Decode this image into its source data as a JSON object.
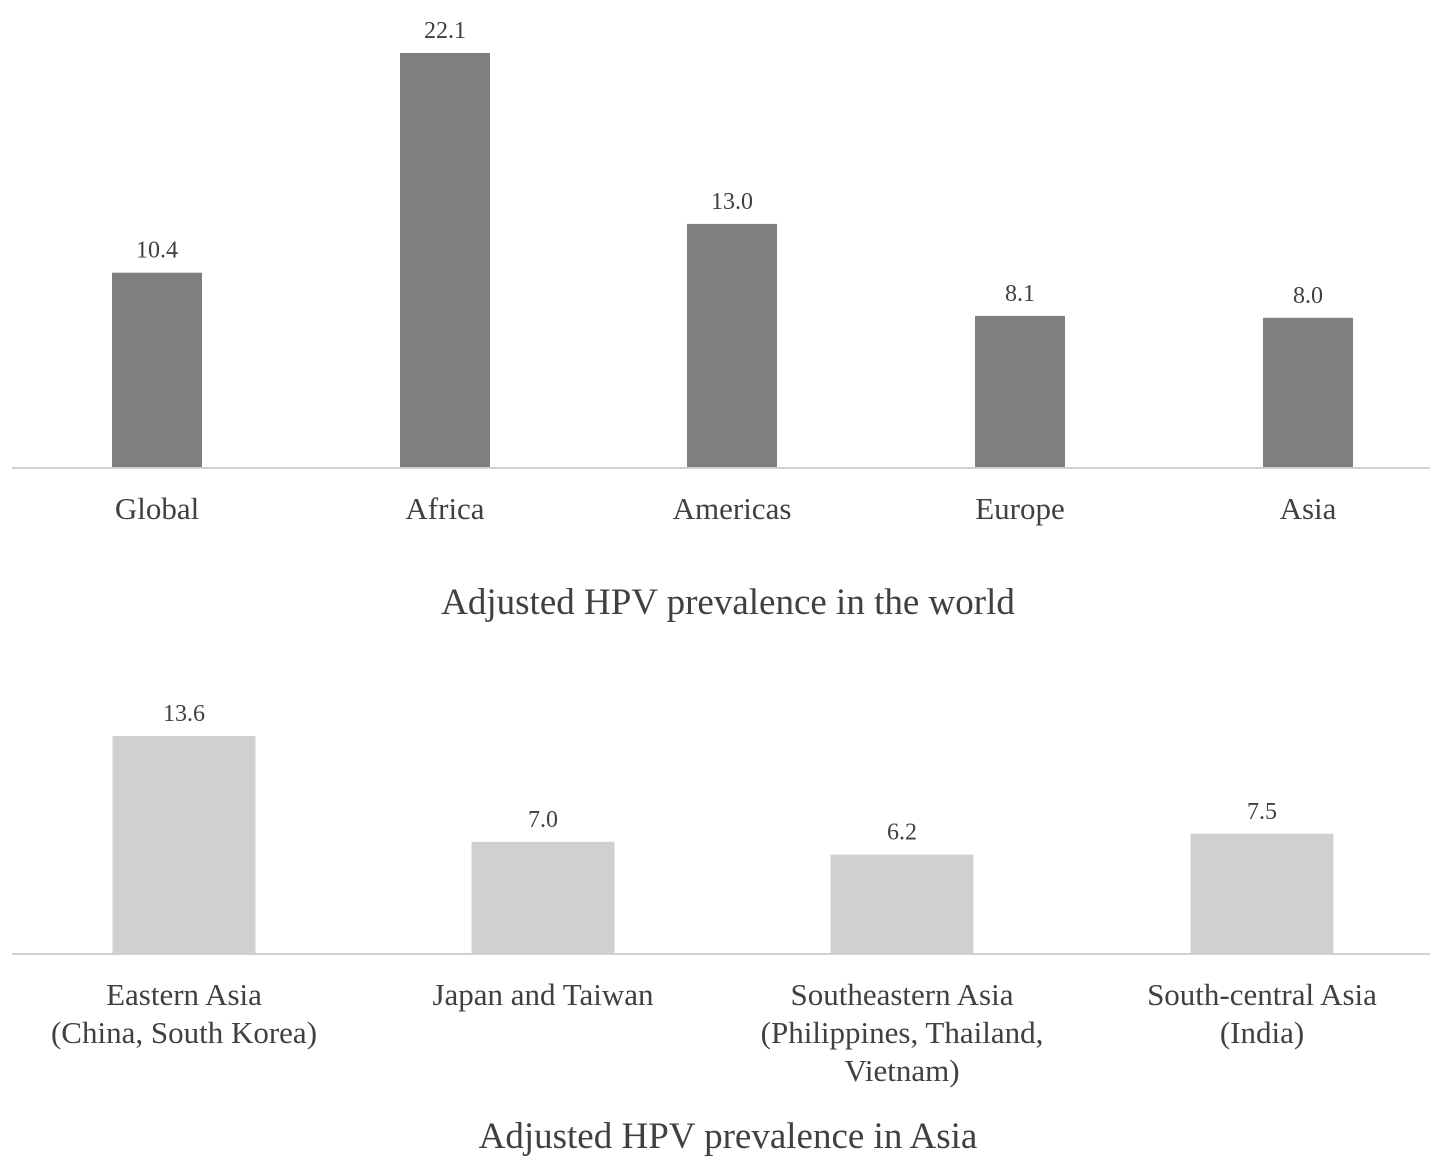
{
  "chart_data": [
    {
      "type": "bar",
      "title": "Adjusted HPV prevalence in the world",
      "categories": [
        "Global",
        "Africa",
        "Americas",
        "Europe",
        "Asia"
      ],
      "values": [
        10.4,
        22.1,
        13.0,
        8.1,
        8.0
      ],
      "value_labels": [
        "10.4",
        "22.1",
        "13.0",
        "8.1",
        "8.0"
      ],
      "color": "#7f7f7f",
      "ylim": [
        0,
        22.1
      ],
      "grid": false,
      "legend": "none"
    },
    {
      "type": "bar",
      "title": "Adjusted HPV prevalence in Asia",
      "categories": [
        [
          "Eastern Asia",
          "(China, South Korea)"
        ],
        [
          "Japan and Taiwan"
        ],
        [
          "Southeastern Asia",
          "(Philippines, Thailand,",
          "Vietnam)"
        ],
        [
          "South-central Asia",
          "(India)"
        ]
      ],
      "values": [
        13.6,
        7.0,
        6.2,
        7.5
      ],
      "value_labels": [
        "13.6",
        "7.0",
        "6.2",
        "7.5"
      ],
      "color": "#d0d0d0",
      "ylim": [
        0,
        13.6
      ],
      "grid": false,
      "legend": "none"
    }
  ]
}
